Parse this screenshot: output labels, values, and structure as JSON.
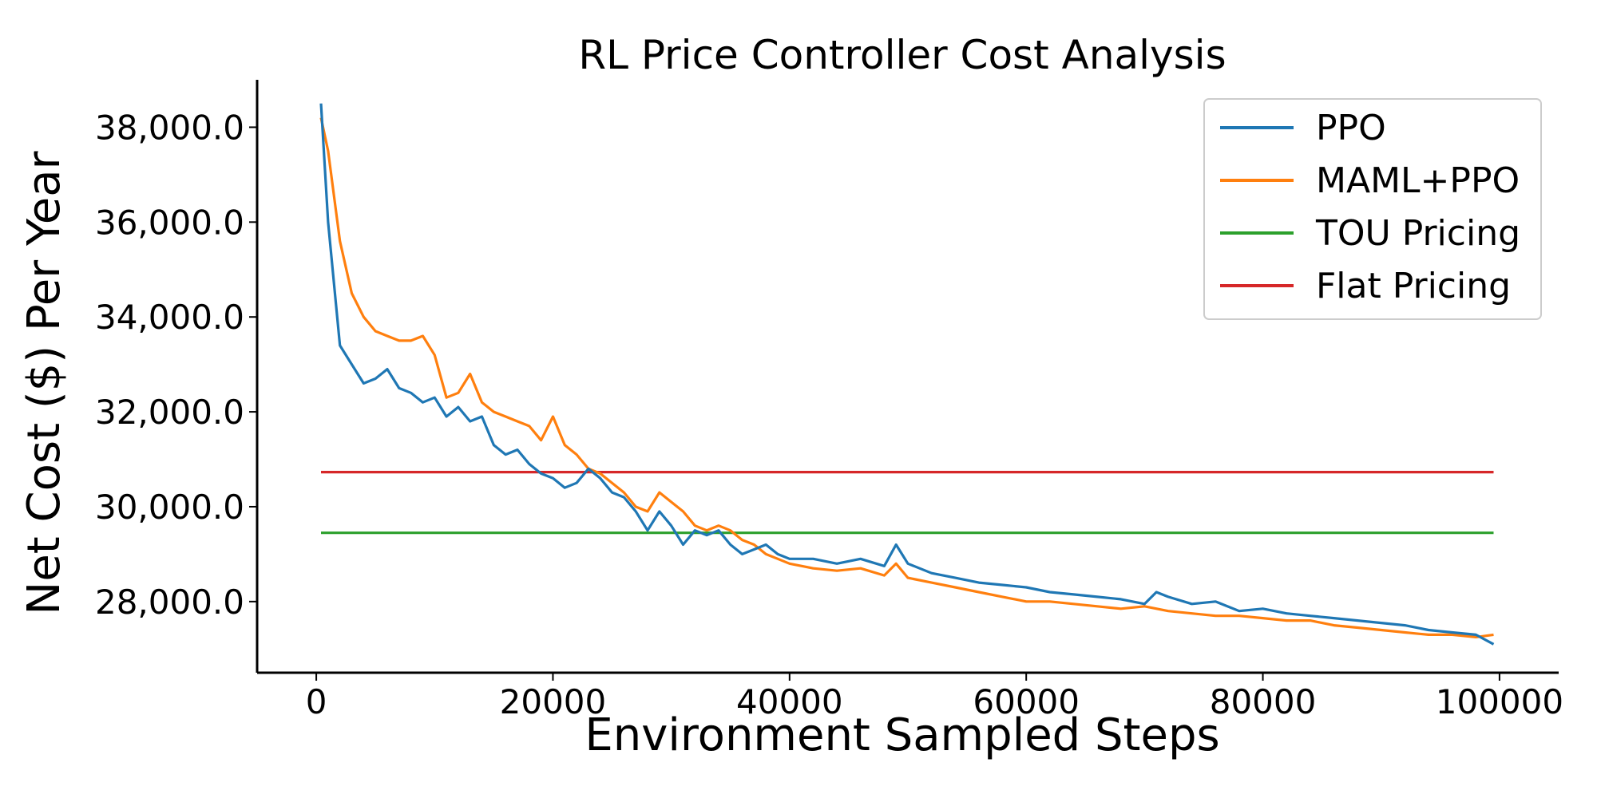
{
  "chart_data": {
    "type": "line",
    "title": "RL Price Controller Cost Analysis",
    "xlabel": "Environment Sampled Steps",
    "ylabel": "Net Cost ($) Per Year",
    "xlim": [
      -5000,
      105000
    ],
    "ylim": [
      26500,
      39000
    ],
    "x_ticks": [
      0,
      20000,
      40000,
      60000,
      80000,
      100000
    ],
    "x_tick_labels": [
      "0",
      "20000",
      "40000",
      "60000",
      "80000",
      "100000"
    ],
    "y_ticks": [
      28000,
      30000,
      32000,
      34000,
      36000,
      38000
    ],
    "y_tick_labels": [
      "28,000.0",
      "30,000.0",
      "32,000.0",
      "34,000.0",
      "36,000.0",
      "38,000.0"
    ],
    "grid": false,
    "legend_position": "top-right",
    "series": [
      {
        "name": "PPO",
        "color": "#1f77b4",
        "x": [
          400,
          1000,
          2000,
          3000,
          4000,
          5000,
          6000,
          7000,
          8000,
          9000,
          10000,
          11000,
          12000,
          13000,
          14000,
          15000,
          16000,
          17000,
          18000,
          19000,
          20000,
          21000,
          22000,
          23000,
          24000,
          25000,
          26000,
          27000,
          28000,
          29000,
          30000,
          31000,
          32000,
          33000,
          34000,
          35000,
          36000,
          37000,
          38000,
          39000,
          40000,
          42000,
          44000,
          46000,
          48000,
          49000,
          50000,
          52000,
          54000,
          56000,
          58000,
          60000,
          62000,
          64000,
          66000,
          68000,
          70000,
          71000,
          72000,
          74000,
          76000,
          78000,
          80000,
          82000,
          84000,
          86000,
          88000,
          90000,
          92000,
          94000,
          96000,
          98000,
          99500
        ],
        "y": [
          38500,
          36000,
          33400,
          33000,
          32600,
          32700,
          32900,
          32500,
          32400,
          32200,
          32300,
          31900,
          32100,
          31800,
          31900,
          31300,
          31100,
          31200,
          30900,
          30700,
          30600,
          30400,
          30500,
          30800,
          30600,
          30300,
          30200,
          29900,
          29500,
          29900,
          29600,
          29200,
          29500,
          29400,
          29500,
          29200,
          29000,
          29100,
          29200,
          29000,
          28900,
          28900,
          28800,
          28900,
          28750,
          29200,
          28800,
          28600,
          28500,
          28400,
          28350,
          28300,
          28200,
          28150,
          28100,
          28050,
          27950,
          28200,
          28100,
          27950,
          28000,
          27800,
          27850,
          27750,
          27700,
          27650,
          27600,
          27550,
          27500,
          27400,
          27350,
          27300,
          27100
        ]
      },
      {
        "name": "MAML+PPO",
        "color": "#ff7f0e",
        "x": [
          400,
          1000,
          2000,
          3000,
          4000,
          5000,
          6000,
          7000,
          8000,
          9000,
          10000,
          11000,
          12000,
          13000,
          14000,
          15000,
          16000,
          17000,
          18000,
          19000,
          20000,
          21000,
          22000,
          23000,
          24000,
          25000,
          26000,
          27000,
          28000,
          29000,
          30000,
          31000,
          32000,
          33000,
          34000,
          35000,
          36000,
          37000,
          38000,
          39000,
          40000,
          42000,
          44000,
          46000,
          48000,
          49000,
          50000,
          52000,
          54000,
          56000,
          58000,
          60000,
          62000,
          64000,
          66000,
          68000,
          70000,
          72000,
          74000,
          76000,
          78000,
          80000,
          82000,
          84000,
          86000,
          88000,
          90000,
          92000,
          94000,
          96000,
          98000,
          99500
        ],
        "y": [
          38200,
          37500,
          35600,
          34500,
          34000,
          33700,
          33600,
          33500,
          33500,
          33600,
          33200,
          32300,
          32400,
          32800,
          32200,
          32000,
          31900,
          31800,
          31700,
          31400,
          31900,
          31300,
          31100,
          30800,
          30700,
          30500,
          30300,
          30000,
          29900,
          30300,
          30100,
          29900,
          29600,
          29500,
          29600,
          29500,
          29300,
          29200,
          29000,
          28900,
          28800,
          28700,
          28650,
          28700,
          28550,
          28800,
          28500,
          28400,
          28300,
          28200,
          28100,
          28000,
          28000,
          27950,
          27900,
          27850,
          27900,
          27800,
          27750,
          27700,
          27700,
          27650,
          27600,
          27600,
          27500,
          27450,
          27400,
          27350,
          27300,
          27300,
          27250,
          27300
        ]
      },
      {
        "name": "TOU Pricing",
        "color": "#2ca02c",
        "x": [
          400,
          99500
        ],
        "y": [
          29450,
          29450
        ]
      },
      {
        "name": "Flat Pricing",
        "color": "#d62728",
        "x": [
          400,
          99500
        ],
        "y": [
          30730,
          30730
        ]
      }
    ]
  }
}
